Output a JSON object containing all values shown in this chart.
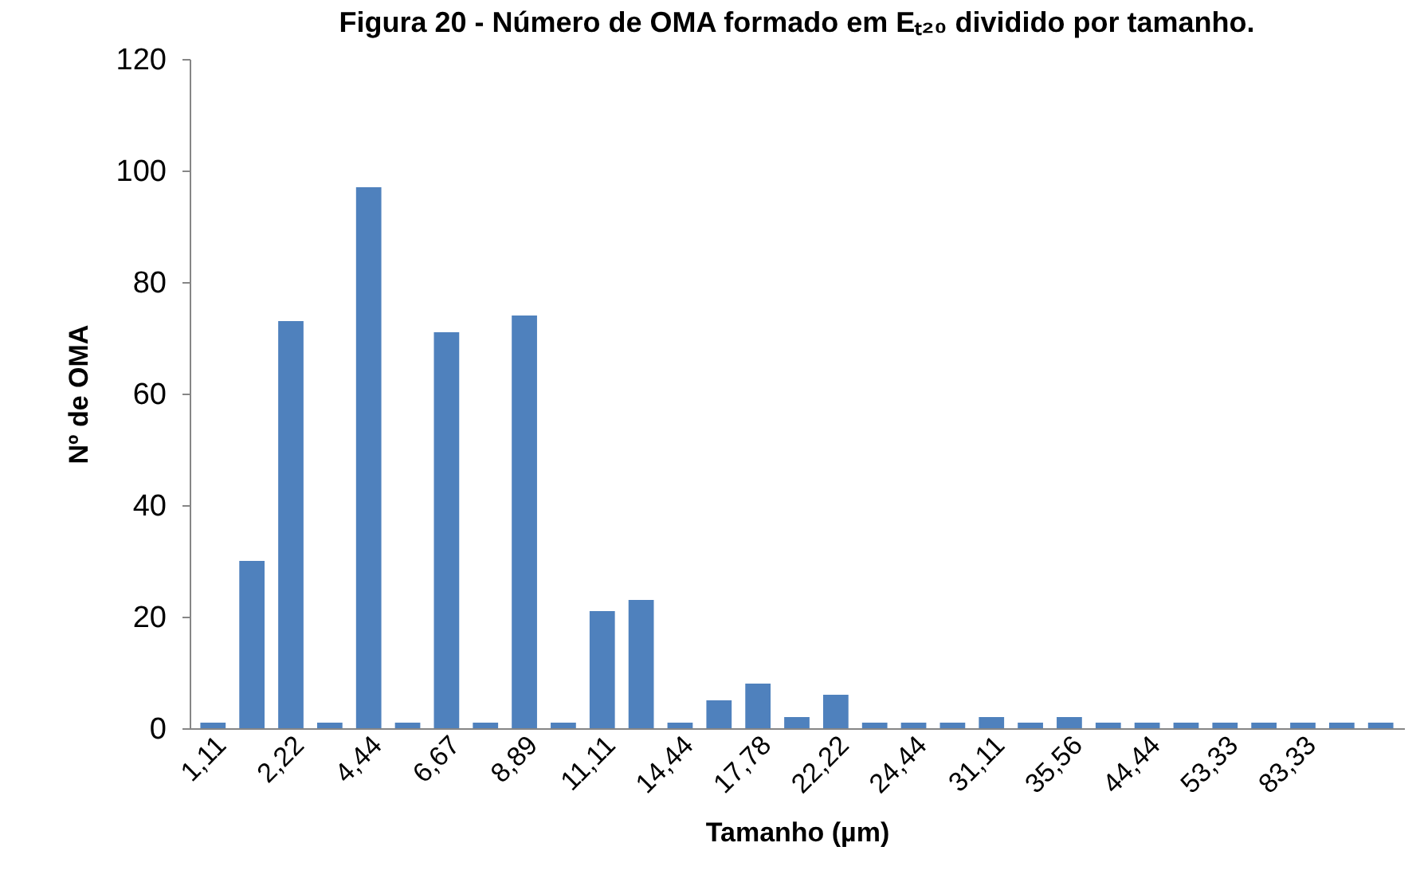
{
  "chart_data": {
    "type": "bar",
    "title": "Figura 20 - Número de OMA formado em Eₜ₂₀ dividido por tamanho.",
    "xlabel": "Tamanho (µm)",
    "ylabel": "Nº de OMA",
    "categories": [
      "1,11",
      null,
      "2,22",
      null,
      "4,44",
      null,
      "6,67",
      null,
      "8,89",
      null,
      "11,11",
      null,
      "14,44",
      null,
      "17,78",
      null,
      "22,22",
      null,
      "24,44",
      null,
      "31,11",
      null,
      "35,56",
      null,
      "44,44",
      null,
      "53,33",
      null,
      "83,33",
      null,
      null
    ],
    "values": [
      1,
      30,
      73,
      1,
      97,
      1,
      71,
      1,
      74,
      1,
      21,
      23,
      1,
      5,
      8,
      2,
      6,
      1,
      1,
      1,
      2,
      1,
      2,
      1,
      1,
      1,
      1,
      1,
      1,
      1,
      1
    ],
    "color": "#4f81bd",
    "ylim": [
      0,
      120
    ],
    "yticks": [
      0,
      20,
      40,
      60,
      80,
      100,
      120
    ],
    "grid": false
  }
}
